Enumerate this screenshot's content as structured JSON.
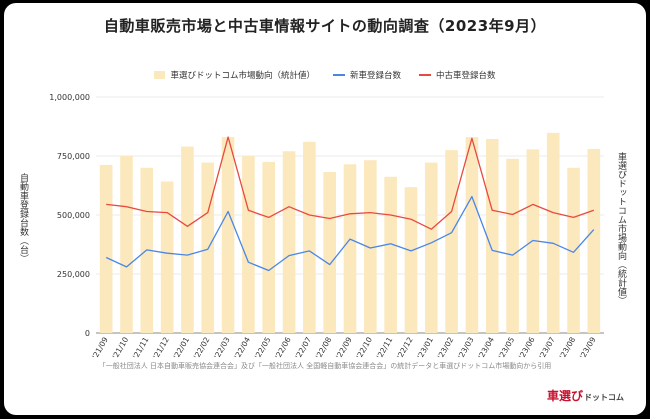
{
  "title": "自動車販売市場と中古車情報サイトの動向調査（2023年9月）",
  "footnote": "「一般社団法人 日本自動車販売協会連合会」及び「一般社団法人 全国軽自動車協会連合会」の統計データと車選びドットコム市場動向から引用",
  "brand": {
    "main": "車選び",
    "sub": "ドットコム"
  },
  "colors": {
    "bar": "#fbe8bd",
    "new_car": "#4a86e8",
    "used_car": "#e84a3f"
  },
  "chart_data": {
    "type": "bar",
    "title": "自動車販売市場と中古車情報サイトの動向調査（2023年9月）",
    "categories": [
      "'21/09",
      "'21/10",
      "'21/11",
      "'21/12",
      "'22/01",
      "'22/02",
      "'22/03",
      "'22/04",
      "'22/05",
      "'22/06",
      "'22/07",
      "'22/08",
      "'22/09",
      "'22/10",
      "'22/11",
      "'22/12",
      "'23/01",
      "'23/02",
      "'23/03",
      "'23/04",
      "'23/05",
      "'23/06",
      "'23/07",
      "'23/08",
      "'23/09"
    ],
    "ylabel": "自動車登録台数（台）",
    "y2label": "車選びドットコム市場動向（統計値）",
    "ylim": [
      0,
      1000000
    ],
    "yticks": [
      "0",
      "250,000",
      "500,000",
      "750,000",
      "1,000,000"
    ],
    "grid": true,
    "legend_position": "top",
    "series": [
      {
        "name": "車選びドットコム市場動向（統計値）",
        "type": "bar",
        "values": [
          712000,
          750000,
          700000,
          642000,
          790000,
          722000,
          830000,
          750000,
          725000,
          770000,
          810000,
          682000,
          715000,
          732000,
          662000,
          618000,
          722000,
          775000,
          830000,
          822000,
          738000,
          778000,
          848000,
          700000,
          780000
        ]
      },
      {
        "name": "新車登録台数",
        "type": "line",
        "values": [
          320000,
          280000,
          352000,
          338000,
          330000,
          355000,
          515000,
          300000,
          265000,
          328000,
          348000,
          290000,
          398000,
          360000,
          378000,
          348000,
          382000,
          425000,
          578000,
          350000,
          330000,
          392000,
          380000,
          342000,
          438000
        ]
      },
      {
        "name": "中古車登録台数",
        "type": "line",
        "values": [
          545000,
          535000,
          515000,
          510000,
          452000,
          510000,
          830000,
          520000,
          490000,
          535000,
          500000,
          485000,
          505000,
          510000,
          500000,
          482000,
          440000,
          515000,
          825000,
          520000,
          502000,
          545000,
          510000,
          490000,
          520000
        ]
      }
    ]
  }
}
